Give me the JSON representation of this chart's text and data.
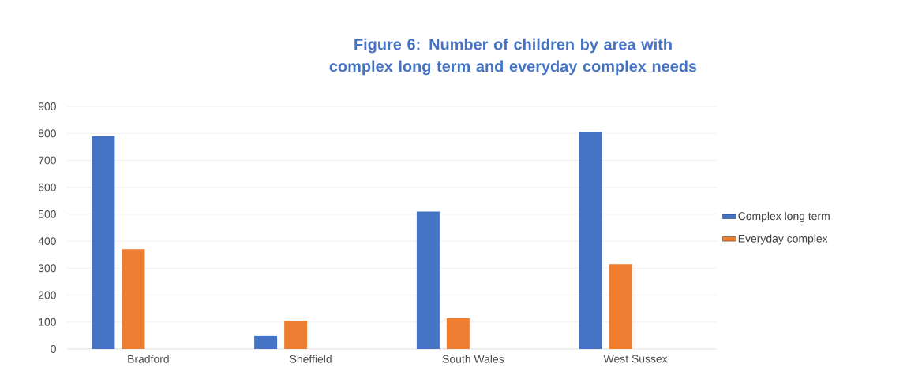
{
  "chart_data": {
    "type": "bar",
    "title": "Figure 6: Number of children by area with complex long term and everyday complex needs",
    "categories": [
      "Bradford",
      "Sheffield",
      "South Wales",
      "West Sussex"
    ],
    "series": [
      {
        "name": "Complex long term",
        "color": "#4472c4",
        "values": [
          790,
          50,
          510,
          805
        ]
      },
      {
        "name": "Everyday complex",
        "color": "#ed7d31",
        "values": [
          370,
          105,
          115,
          315
        ]
      }
    ],
    "ylim": [
      0,
      900
    ],
    "yticks": [
      0,
      100,
      200,
      300,
      400,
      500,
      600,
      700,
      800,
      900
    ],
    "grid": "y",
    "legend": "right"
  }
}
